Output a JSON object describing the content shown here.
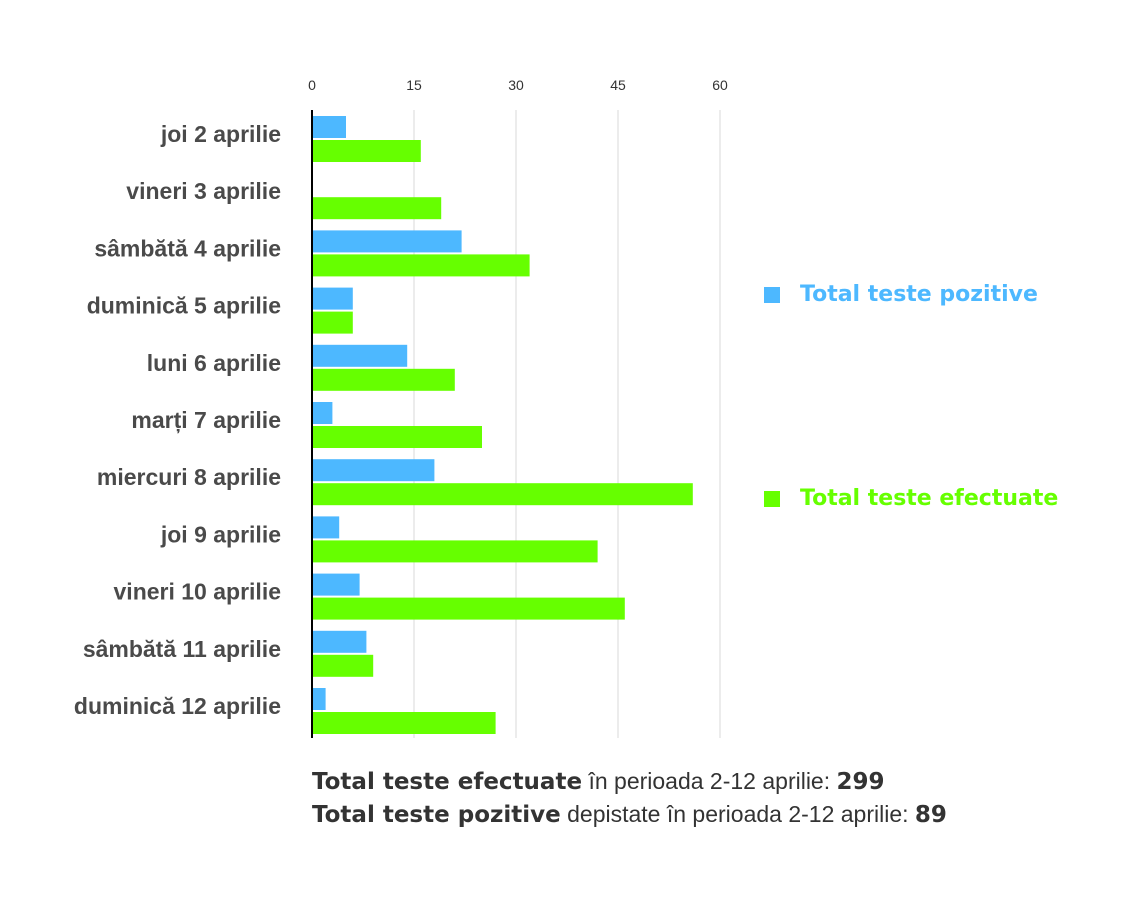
{
  "colors": {
    "positive": "#4db8ff",
    "total": "#66ff00",
    "grid": "#d9d9d9",
    "axis": "#000000"
  },
  "legend": {
    "positive_label": "Total teste pozitive",
    "total_label": "Total teste efectuate"
  },
  "summary": {
    "line1_bold": "Total teste efectuate",
    "line1_text": " în perioada 2-12 aprilie: ",
    "line1_value": "299",
    "line2_bold": "Total teste pozitive",
    "line2_text": " depistate în perioada 2-12 aprilie: ",
    "line2_value": "89"
  },
  "chart_data": {
    "type": "bar",
    "orientation": "horizontal",
    "categories": [
      "joi 2 aprilie",
      "vineri 3 aprilie",
      "sâmbătă 4 aprilie",
      "duminică 5 aprilie",
      "luni 6 aprilie",
      "marți 7 aprilie",
      "miercuri 8 aprilie",
      "joi 9 aprilie",
      "vineri 10 aprilie",
      "sâmbătă 11 aprilie",
      "duminică 12 aprilie"
    ],
    "series": [
      {
        "name": "Total teste pozitive",
        "values": [
          5,
          0,
          22,
          6,
          14,
          3,
          18,
          4,
          7,
          8,
          2
        ]
      },
      {
        "name": "Total teste efectuate",
        "values": [
          16,
          19,
          32,
          6,
          21,
          25,
          56,
          42,
          46,
          9,
          27
        ]
      }
    ],
    "xticks": [
      0,
      15,
      30,
      45,
      60
    ],
    "xlim": [
      0,
      60
    ],
    "grid": true,
    "legend_position": "right"
  }
}
